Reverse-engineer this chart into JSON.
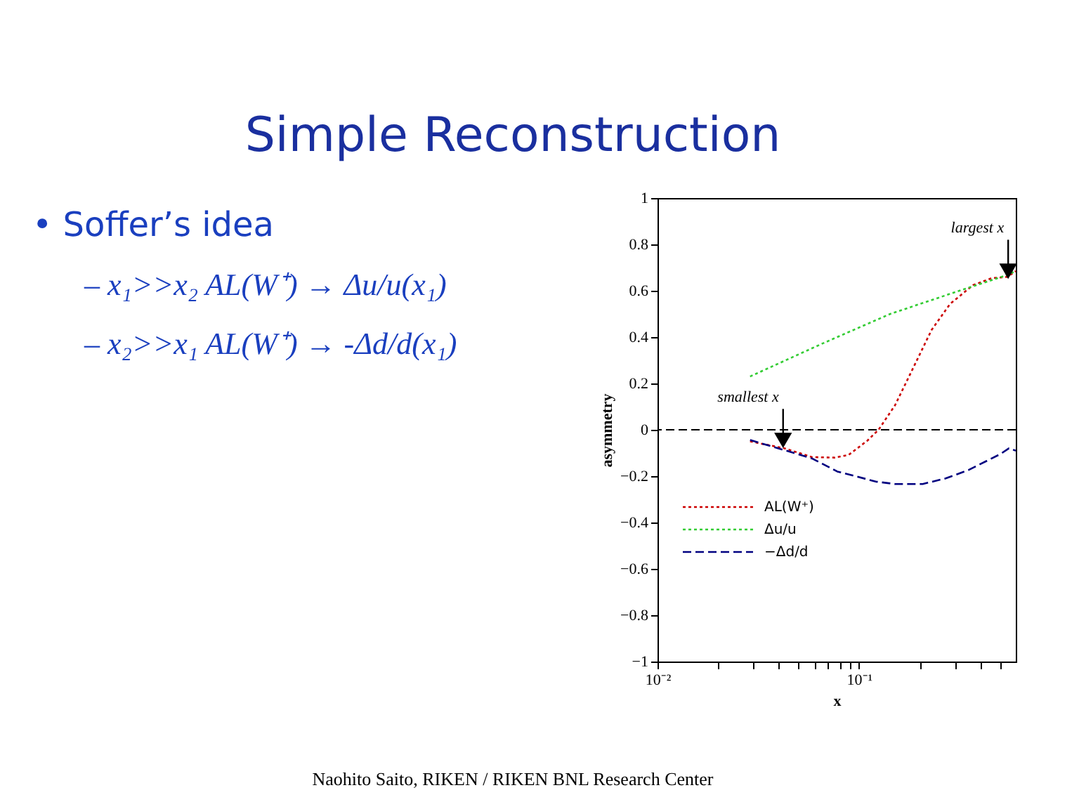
{
  "chart_data": {
    "type": "line",
    "title": "Simple Reconstruction",
    "xlabel": "x",
    "ylabel": "asymmetry",
    "log": "x",
    "xlim": [
      0.01,
      0.6
    ],
    "ylim": [
      -1,
      1
    ],
    "xticks": [
      {
        "value": 0.01,
        "label": "10⁻²"
      },
      {
        "value": 0.02,
        "label": null
      },
      {
        "value": 0.03,
        "label": null
      },
      {
        "value": 0.04,
        "label": null
      },
      {
        "value": 0.05,
        "label": null
      },
      {
        "value": 0.06,
        "label": null
      },
      {
        "value": 0.07,
        "label": null
      },
      {
        "value": 0.08,
        "label": null
      },
      {
        "value": 0.09,
        "label": null
      },
      {
        "value": 0.1,
        "label": "10⁻¹"
      },
      {
        "value": 0.2,
        "label": null
      },
      {
        "value": 0.3,
        "label": null
      },
      {
        "value": 0.4,
        "label": null
      },
      {
        "value": 0.5,
        "label": null
      }
    ],
    "yticks": [
      -1,
      -0.8,
      -0.6,
      -0.4,
      -0.2,
      0,
      0.2,
      0.4,
      0.6,
      0.8,
      1
    ],
    "grid": false,
    "legend": "bottom left",
    "line_style": "dotted",
    "marker": "none",
    "series": [
      {
        "name": "AL(W⁺)",
        "color": "#cc0000",
        "x": [
          0.0288,
          0.0427,
          0.0585,
          0.076,
          0.089,
          0.11,
          0.125,
          0.151,
          0.186,
          0.229,
          0.283,
          0.368,
          0.455,
          0.547,
          0.6
        ],
        "values": [
          -0.05,
          -0.08,
          -0.118,
          -0.12,
          -0.108,
          -0.047,
          0,
          0.106,
          0.268,
          0.43,
          0.543,
          0.624,
          0.654,
          0.66,
          0.685
        ]
      },
      {
        "name": "Δu/u",
        "color": "#33cc33",
        "x": [
          0.0288,
          0.065,
          0.143,
          0.315,
          0.532,
          0.6
        ],
        "values": [
          0.23,
          0.37,
          0.5,
          0.6,
          0.665,
          0.685
        ]
      },
      {
        "name": "−Δd/d",
        "color": "#000080",
        "line_style": "dashed",
        "x": [
          0.0288,
          0.0427,
          0.0585,
          0.078,
          0.122,
          0.151,
          0.207,
          0.269,
          0.349,
          0.431,
          0.505,
          0.555,
          0.6
        ],
        "values": [
          -0.044,
          -0.088,
          -0.124,
          -0.18,
          -0.224,
          -0.234,
          -0.234,
          -0.21,
          -0.174,
          -0.134,
          -0.104,
          -0.08,
          -0.09
        ]
      }
    ],
    "ref_lines": [
      {
        "axis": "y",
        "value": 0,
        "label": null,
        "color": "#000000",
        "line_style": "dashed"
      }
    ],
    "annotations": [
      {
        "text": "largest x",
        "x": 0.55,
        "y": 0.66
      },
      {
        "text": "smallest x",
        "x": 0.042,
        "y": -0.07
      },
      "• Soffer’s idea",
      "– x₁>>x₂ AL(W⁺) → Δu/u(x₁)",
      "– x₂>>x₁ AL(W⁺) → -Δd/d(x₁)",
      "Naohito Saito, RIKEN / RIKEN BNL Research Center"
    ]
  }
}
